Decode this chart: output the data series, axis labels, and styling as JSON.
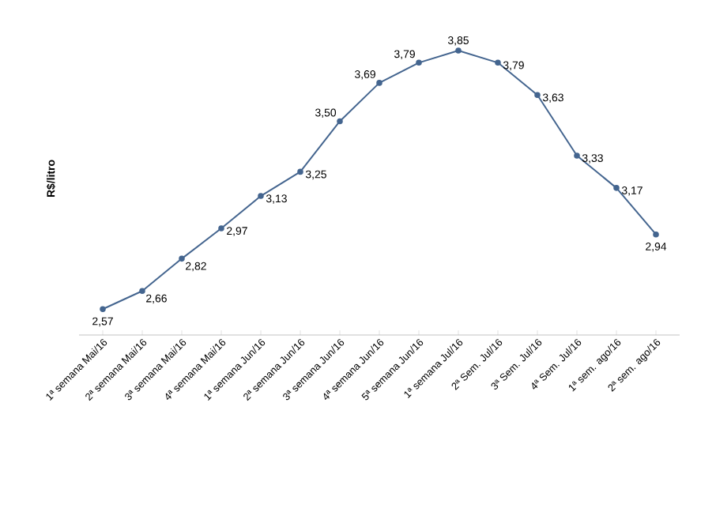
{
  "chart_data": {
    "type": "line",
    "ylabel": "R$/litro",
    "categories": [
      "1ª semana Mai/16",
      "2ª semana Mai/16",
      "3ª semana Mai/16",
      "4ª semana Mai/16",
      "1ª semana Jun/16",
      "2ª semana Jun/16",
      "3ª semana Jun/16",
      "4ª semana Jun/16",
      "5ª semana Jun/16",
      "1ª semana Jul/16",
      "2ª Sem. Jul/16",
      "3ª Sem. Jul/16",
      "4ª Sem. Jul/16",
      "1ª sem. ago/16",
      "2ª sem. ago/16"
    ],
    "series": [
      {
        "color": "#44658f",
        "values": [
          2.57,
          2.66,
          2.82,
          2.97,
          3.13,
          3.25,
          3.5,
          3.69,
          3.79,
          3.85,
          3.79,
          3.63,
          3.33,
          3.17,
          2.94
        ],
        "value_labels": [
          "2,57",
          "2,66",
          "2,82",
          "2,97",
          "3,13",
          "3,25",
          "3,50",
          "3,69",
          "3,79",
          "3,85",
          "3,79",
          "3,63",
          "3,33",
          "3,17",
          "2,94"
        ]
      }
    ],
    "tick_labels": "x",
    "marker": "circle",
    "line_style": "solid"
  }
}
